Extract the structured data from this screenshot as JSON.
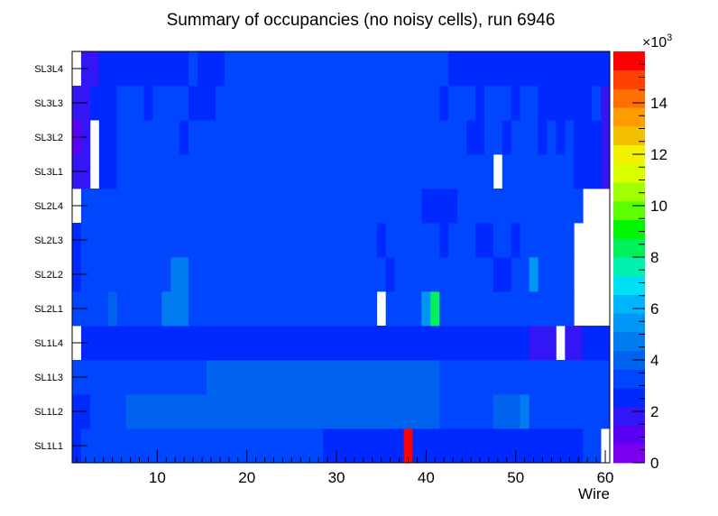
{
  "chart_data": {
    "type": "heatmap",
    "title": "Summary of occupancies (no noisy cells), run 6946",
    "xlabel": "Wire",
    "ylabel": "",
    "x_range": [
      0.5,
      60.5
    ],
    "x_ticks": [
      10,
      20,
      30,
      40,
      50,
      60
    ],
    "y_categories": [
      "SL1L1",
      "SL1L2",
      "SL1L3",
      "SL1L4",
      "SL2L1",
      "SL2L2",
      "SL2L3",
      "SL2L4",
      "SL3L1",
      "SL3L2",
      "SL3L3",
      "SL3L4"
    ],
    "z_range": [
      0,
      16000
    ],
    "z_exponent_label": "×10",
    "z_exponent_power": "3",
    "z_tick_labels": [
      "0",
      "2",
      "4",
      "6",
      "8",
      "10",
      "12",
      "14"
    ],
    "z_tick_values": [
      0,
      2000,
      4000,
      6000,
      8000,
      10000,
      12000,
      14000
    ],
    "palette": [
      "#7b00f2",
      "#5a00f5",
      "#3316f5",
      "#0029ff",
      "#0046ff",
      "#0063f0",
      "#007bf0",
      "#0096f5",
      "#00b5ff",
      "#00e0f2",
      "#00f2b2",
      "#00f25a",
      "#00f500",
      "#5aff00",
      "#a0ff00",
      "#dcff00",
      "#f2f200",
      "#f2c000",
      "#ff9c00",
      "#ff7000",
      "#ff4000",
      "#ff0000"
    ],
    "row_segments": [
      [
        [
          1,
          1,
          2800
        ],
        [
          2,
          16,
          3100
        ],
        [
          17,
          17,
          3400
        ],
        [
          18,
          28,
          3100
        ],
        [
          29,
          37,
          2400
        ],
        [
          38,
          38,
          16000
        ],
        [
          39,
          57,
          2400
        ],
        [
          58,
          59,
          3100
        ],
        [
          60,
          60,
          null
        ]
      ],
      [
        [
          1,
          2,
          2400
        ],
        [
          3,
          4,
          3100
        ],
        [
          5,
          5,
          3400
        ],
        [
          6,
          6,
          3100
        ],
        [
          7,
          41,
          3700
        ],
        [
          42,
          47,
          3100
        ],
        [
          48,
          50,
          4200
        ],
        [
          51,
          51,
          4800
        ],
        [
          52,
          60,
          3100
        ]
      ],
      [
        [
          1,
          8,
          3100
        ],
        [
          9,
          10,
          3600
        ],
        [
          11,
          11,
          3100
        ],
        [
          12,
          14,
          3600
        ],
        [
          15,
          15,
          3100
        ],
        [
          16,
          41,
          3900
        ],
        [
          42,
          46,
          3100
        ],
        [
          47,
          47,
          3500
        ],
        [
          48,
          48,
          3100
        ],
        [
          49,
          49,
          3500
        ],
        [
          50,
          58,
          3100
        ],
        [
          59,
          59,
          3500
        ],
        [
          60,
          60,
          3100
        ]
      ],
      [
        [
          1,
          1,
          null
        ],
        [
          2,
          51,
          2400
        ],
        [
          52,
          54,
          1700
        ],
        [
          55,
          55,
          null
        ],
        [
          56,
          57,
          1700
        ],
        [
          58,
          60,
          2400
        ]
      ],
      [
        [
          1,
          1,
          3100
        ],
        [
          2,
          4,
          3600
        ],
        [
          5,
          5,
          4200
        ],
        [
          6,
          10,
          3600
        ],
        [
          11,
          13,
          4500
        ],
        [
          14,
          23,
          3600
        ],
        [
          24,
          34,
          3100
        ],
        [
          35,
          35,
          null
        ],
        [
          36,
          39,
          3100
        ],
        [
          40,
          40,
          5800
        ],
        [
          41,
          41,
          8400
        ],
        [
          42,
          44,
          3600
        ],
        [
          45,
          56,
          3100
        ],
        [
          57,
          60,
          null
        ]
      ],
      [
        [
          1,
          1,
          2800
        ],
        [
          2,
          11,
          3600
        ],
        [
          12,
          13,
          4500
        ],
        [
          14,
          23,
          3600
        ],
        [
          24,
          35,
          3100
        ],
        [
          36,
          36,
          2400
        ],
        [
          37,
          47,
          3100
        ],
        [
          48,
          49,
          2800
        ],
        [
          50,
          51,
          3100
        ],
        [
          52,
          52,
          5500
        ],
        [
          53,
          56,
          3100
        ],
        [
          57,
          60,
          null
        ]
      ],
      [
        [
          1,
          1,
          2800
        ],
        [
          2,
          22,
          3600
        ],
        [
          23,
          34,
          3100
        ],
        [
          35,
          35,
          2800
        ],
        [
          36,
          41,
          3100
        ],
        [
          42,
          42,
          2800
        ],
        [
          43,
          45,
          3100
        ],
        [
          46,
          47,
          2800
        ],
        [
          48,
          49,
          3100
        ],
        [
          50,
          50,
          2800
        ],
        [
          51,
          56,
          3100
        ],
        [
          57,
          60,
          null
        ]
      ],
      [
        [
          1,
          1,
          null
        ],
        [
          2,
          7,
          3600
        ],
        [
          8,
          8,
          3100
        ],
        [
          9,
          22,
          3600
        ],
        [
          23,
          39,
          3100
        ],
        [
          40,
          43,
          2800
        ],
        [
          44,
          48,
          3100
        ],
        [
          49,
          55,
          3100
        ],
        [
          56,
          57,
          3100
        ],
        [
          58,
          60,
          null
        ]
      ],
      [
        [
          1,
          2,
          1700
        ],
        [
          3,
          3,
          null
        ],
        [
          4,
          5,
          2400
        ],
        [
          6,
          44,
          3100
        ],
        [
          45,
          47,
          3100
        ],
        [
          48,
          48,
          null
        ],
        [
          49,
          56,
          3100
        ],
        [
          57,
          59,
          2400
        ],
        [
          60,
          60,
          1700
        ]
      ],
      [
        [
          1,
          1,
          1000
        ],
        [
          2,
          2,
          1700
        ],
        [
          3,
          3,
          null
        ],
        [
          4,
          5,
          2400
        ],
        [
          6,
          12,
          3100
        ],
        [
          13,
          13,
          2400
        ],
        [
          14,
          44,
          3100
        ],
        [
          45,
          46,
          2400
        ],
        [
          47,
          48,
          3100
        ],
        [
          49,
          49,
          2400
        ],
        [
          50,
          52,
          3100
        ],
        [
          53,
          53,
          2400
        ],
        [
          54,
          54,
          3100
        ],
        [
          55,
          55,
          2400
        ],
        [
          56,
          56,
          3100
        ],
        [
          57,
          59,
          2400
        ],
        [
          60,
          60,
          1700
        ]
      ],
      [
        [
          1,
          2,
          1700
        ],
        [
          3,
          5,
          2400
        ],
        [
          6,
          8,
          3100
        ],
        [
          9,
          9,
          2400
        ],
        [
          10,
          13,
          3100
        ],
        [
          14,
          16,
          2400
        ],
        [
          17,
          41,
          3100
        ],
        [
          42,
          42,
          2400
        ],
        [
          43,
          45,
          3100
        ],
        [
          46,
          46,
          2400
        ],
        [
          47,
          49,
          3100
        ],
        [
          50,
          50,
          2400
        ],
        [
          51,
          52,
          3100
        ],
        [
          53,
          58,
          2400
        ],
        [
          59,
          59,
          3100
        ],
        [
          60,
          60,
          1700
        ]
      ],
      [
        [
          1,
          1,
          null
        ],
        [
          2,
          3,
          1700
        ],
        [
          4,
          13,
          2400
        ],
        [
          14,
          14,
          3100
        ],
        [
          15,
          15,
          2400
        ],
        [
          16,
          17,
          2800
        ],
        [
          18,
          42,
          3100
        ],
        [
          43,
          60,
          2400
        ]
      ]
    ]
  }
}
